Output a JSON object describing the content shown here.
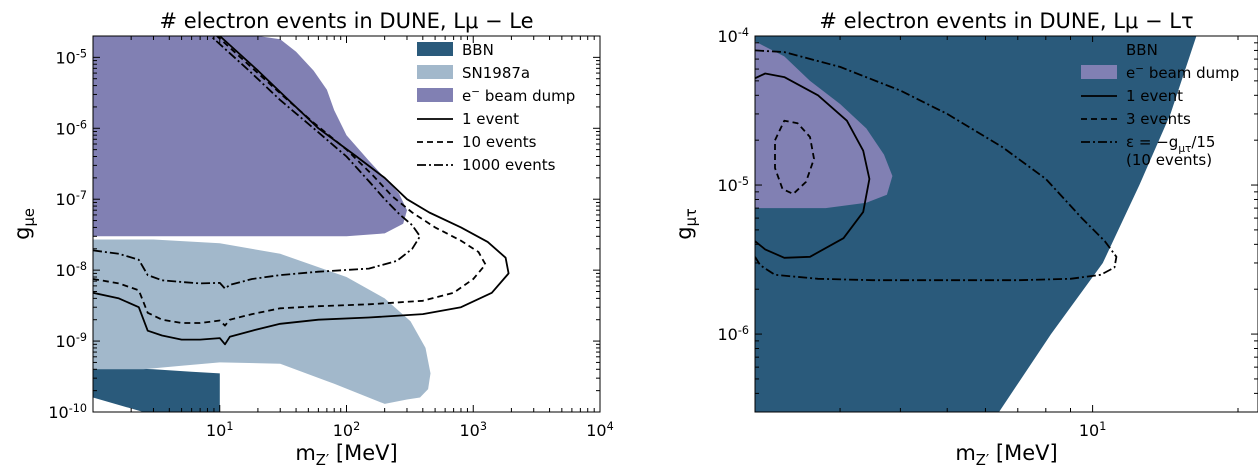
{
  "colors": {
    "bbn": "#2a5a7b",
    "sn1987a": "#a2b8cb",
    "beam_dump": "#8180b3",
    "line": "#000000"
  },
  "chart_data": [
    {
      "type": "area",
      "title": "# electron events in DUNE, Lμ − Le",
      "xlabel": "m_Z′ [MeV]",
      "ylabel": "g_μe",
      "xscale": "log",
      "yscale": "log",
      "xlim": [
        1,
        10000
      ],
      "ylim": [
        1e-10,
        2e-05
      ],
      "xticks": [
        {
          "value": 10,
          "label": "10^1"
        },
        {
          "value": 100,
          "label": "10^2"
        },
        {
          "value": 1000,
          "label": "10^3"
        },
        {
          "value": 10000,
          "label": "10^4"
        }
      ],
      "yticks": [
        {
          "value": 1e-10,
          "label": "10^-10"
        },
        {
          "value": 1e-09,
          "label": "10^-9"
        },
        {
          "value": 1e-08,
          "label": "10^-8"
        },
        {
          "value": 1e-07,
          "label": "10^-7"
        },
        {
          "value": 1e-06,
          "label": "10^-6"
        },
        {
          "value": 1e-05,
          "label": "10^-5"
        }
      ],
      "legend_position": "top-right",
      "legend": [
        {
          "label": "BBN",
          "kind": "patch",
          "color": "#2a5a7b"
        },
        {
          "label": "SN1987a",
          "kind": "patch",
          "color": "#a2b8cb"
        },
        {
          "label": "e^− beam dump",
          "kind": "patch",
          "color": "#8180b3"
        },
        {
          "label": "1 event",
          "kind": "line",
          "dash": "solid"
        },
        {
          "label": "10 events",
          "kind": "line",
          "dash": "dashed"
        },
        {
          "label": "1000 events",
          "kind": "line",
          "dash": "dashdot"
        }
      ],
      "regions": [
        {
          "name": "bbn",
          "color": "#2a5a7b",
          "points": [
            [
              1,
              1.6e-10
            ],
            [
              1,
              4.2e-10
            ],
            [
              1.5,
              4.2e-10
            ],
            [
              3,
              4e-10
            ],
            [
              6,
              3.7e-10
            ],
            [
              10,
              3.5e-10
            ],
            [
              10,
              1e-10
            ],
            [
              2.5,
              1e-10
            ]
          ]
        },
        {
          "name": "sn1987a",
          "color": "#a2b8cb",
          "points": [
            [
              1,
              2.7e-08
            ],
            [
              3,
              2.7e-08
            ],
            [
              10,
              2.4e-08
            ],
            [
              30,
              1.7e-08
            ],
            [
              100,
              8e-09
            ],
            [
              200,
              4e-09
            ],
            [
              320,
              1.9e-09
            ],
            [
              420,
              8e-10
            ],
            [
              460,
              3.5e-10
            ],
            [
              440,
              2.1e-10
            ],
            [
              380,
              1.6e-10
            ],
            [
              300,
              1.5e-10
            ],
            [
              200,
              1.3e-10
            ],
            [
              80,
              2.5e-10
            ],
            [
              30,
              4.8e-10
            ],
            [
              10,
              5e-10
            ],
            [
              5,
              4.5e-10
            ],
            [
              2.5,
              4e-10
            ],
            [
              1,
              4e-10
            ]
          ]
        },
        {
          "name": "beam_dump",
          "color": "#8180b3",
          "points": [
            [
              1,
              3e-08
            ],
            [
              20,
              3e-08
            ],
            [
              100,
              3e-08
            ],
            [
              200,
              3.3e-08
            ],
            [
              280,
              4.5e-08
            ],
            [
              300,
              7e-08
            ],
            [
              260,
              1.2e-07
            ],
            [
              200,
              2e-07
            ],
            [
              150,
              3.5e-07
            ],
            [
              100,
              8e-07
            ],
            [
              80,
              1.8e-06
            ],
            [
              70,
              3.5e-06
            ],
            [
              55,
              6.5e-06
            ],
            [
              40,
              1.2e-05
            ],
            [
              30,
              1.8e-05
            ],
            [
              20,
              2e-05
            ],
            [
              1,
              2e-05
            ]
          ]
        }
      ],
      "series": [
        {
          "name": "1 event",
          "dash": "solid",
          "points": [
            [
              1,
              4.8e-09
            ],
            [
              1.6,
              4e-09
            ],
            [
              2.3,
              3e-09
            ],
            [
              2.7,
              1.4e-09
            ],
            [
              3.5,
              1.2e-09
            ],
            [
              5,
              1.05e-09
            ],
            [
              7,
              1.05e-09
            ],
            [
              10,
              1.1e-09
            ],
            [
              11,
              9e-10
            ],
            [
              12,
              1.15e-09
            ],
            [
              18,
              1.4e-09
            ],
            [
              30,
              1.75e-09
            ],
            [
              60,
              2e-09
            ],
            [
              150,
              2.15e-09
            ],
            [
              400,
              2.4e-09
            ],
            [
              800,
              3e-09
            ],
            [
              1400,
              4.8e-09
            ],
            [
              1900,
              9e-09
            ],
            [
              1800,
              1.5e-08
            ],
            [
              1300,
              2.5e-08
            ],
            [
              800,
              4e-08
            ],
            [
              450,
              6.5e-08
            ],
            [
              300,
              1e-07
            ],
            [
              200,
              2e-07
            ],
            [
              120,
              4e-07
            ],
            [
              60,
              1e-06
            ],
            [
              35,
              2.5e-06
            ],
            [
              20,
              6.5e-06
            ],
            [
              10,
              2e-05
            ]
          ]
        },
        {
          "name": "10 events",
          "dash": "dashed",
          "points": [
            [
              1,
              7.5e-09
            ],
            [
              1.6,
              6.5e-09
            ],
            [
              2.3,
              5.2e-09
            ],
            [
              2.7,
              2.5e-09
            ],
            [
              3.5,
              2e-09
            ],
            [
              5,
              1.8e-09
            ],
            [
              7,
              1.8e-09
            ],
            [
              10,
              1.95e-09
            ],
            [
              11,
              1.65e-09
            ],
            [
              12,
              2e-09
            ],
            [
              18,
              2.4e-09
            ],
            [
              30,
              2.9e-09
            ],
            [
              60,
              3.1e-09
            ],
            [
              150,
              3.3e-09
            ],
            [
              400,
              3.7e-09
            ],
            [
              700,
              4.8e-09
            ],
            [
              1000,
              7.5e-09
            ],
            [
              1250,
              1.2e-08
            ],
            [
              1100,
              1.8e-08
            ],
            [
              800,
              2.6e-08
            ],
            [
              500,
              4e-08
            ],
            [
              330,
              6.5e-08
            ],
            [
              230,
              1.1e-07
            ],
            [
              160,
              2.2e-07
            ],
            [
              100,
              5e-07
            ],
            [
              55,
              1.2e-06
            ],
            [
              32,
              2.8e-06
            ],
            [
              19,
              6.5e-06
            ],
            [
              9.5,
              2e-05
            ]
          ]
        },
        {
          "name": "1000 events",
          "dash": "dashdot",
          "points": [
            [
              1,
              1.9e-08
            ],
            [
              1.6,
              1.7e-08
            ],
            [
              2.3,
              1.4e-08
            ],
            [
              2.7,
              8.5e-09
            ],
            [
              3.5,
              7.2e-09
            ],
            [
              5,
              6.8e-09
            ],
            [
              7,
              6.5e-09
            ],
            [
              10,
              6.6e-09
            ],
            [
              11,
              5.5e-09
            ],
            [
              12,
              6.2e-09
            ],
            [
              18,
              7.5e-09
            ],
            [
              30,
              8.5e-09
            ],
            [
              60,
              9.5e-09
            ],
            [
              150,
              1.05e-08
            ],
            [
              250,
              1.35e-08
            ],
            [
              330,
              2e-08
            ],
            [
              380,
              3e-08
            ],
            [
              330,
              4.3e-08
            ],
            [
              260,
              6.2e-08
            ],
            [
              200,
              1e-07
            ],
            [
              150,
              1.8e-07
            ],
            [
              100,
              4e-07
            ],
            [
              55,
              1e-06
            ],
            [
              30,
              2.5e-06
            ],
            [
              17,
              6.5e-06
            ],
            [
              8.5,
              2e-05
            ]
          ]
        }
      ]
    },
    {
      "type": "area",
      "title": "# electron events in DUNE, Lμ − Lτ",
      "xlabel": "m_Z′ [MeV]",
      "ylabel": "g_μτ",
      "xscale": "log",
      "yscale": "log",
      "xlim": [
        2,
        22
      ],
      "ylim": [
        3e-07,
        0.0001
      ],
      "xticks": [
        {
          "value": 10,
          "label": "10^1"
        }
      ],
      "yticks": [
        {
          "value": 1e-06,
          "label": "10^-6"
        },
        {
          "value": 1e-05,
          "label": "10^-5"
        },
        {
          "value": 0.0001,
          "label": "10^-4"
        }
      ],
      "legend_position": "top-right",
      "legend": [
        {
          "label": "BBN",
          "kind": "patch",
          "color": "#2a5a7b"
        },
        {
          "label": "e^− beam dump",
          "kind": "patch",
          "color": "#8180b3"
        },
        {
          "label": "1 event",
          "kind": "line",
          "dash": "solid"
        },
        {
          "label": "3 events",
          "kind": "line",
          "dash": "dashed"
        },
        {
          "label": "ε = −g_μτ/15",
          "label2": "(10 events)",
          "kind": "line",
          "dash": "dashdot"
        }
      ],
      "regions": [
        {
          "name": "bbn",
          "color": "#2a5a7b",
          "points": [
            [
              2,
              3e-07
            ],
            [
              2,
              0.0001
            ],
            [
              16.4,
              0.0001
            ],
            [
              14.5,
              3e-05
            ],
            [
              12.5,
              1e-05
            ],
            [
              10.5,
              3e-06
            ],
            [
              8.2,
              1e-06
            ],
            [
              6.4,
              3e-07
            ]
          ]
        },
        {
          "name": "beam_dump",
          "color": "#8180b3",
          "points": [
            [
              2,
              9.2e-05
            ],
            [
              2.3,
              7.3e-05
            ],
            [
              2.6,
              5e-05
            ],
            [
              3,
              3.5e-05
            ],
            [
              3.4,
              2.4e-05
            ],
            [
              3.7,
              1.6e-05
            ],
            [
              3.85,
              1.15e-05
            ],
            [
              3.75,
              8.6e-06
            ],
            [
              3.4,
              7.6e-06
            ],
            [
              2.8,
              7e-06
            ],
            [
              2,
              7e-06
            ]
          ]
        }
      ],
      "series": [
        {
          "name": "1 event",
          "dash": "solid",
          "points": [
            [
              2,
              5.2e-05
            ],
            [
              2.1,
              5.6e-05
            ],
            [
              2.3,
              5.3e-05
            ],
            [
              2.7,
              4e-05
            ],
            [
              3.1,
              2.7e-05
            ],
            [
              3.35,
              1.7e-05
            ],
            [
              3.45,
              1.1e-05
            ],
            [
              3.35,
              6.6e-06
            ],
            [
              3.05,
              4.4e-06
            ],
            [
              2.6,
              3.3e-06
            ],
            [
              2.3,
              3.25e-06
            ],
            [
              2.1,
              3.7e-06
            ],
            [
              2,
              4.2e-06
            ]
          ]
        },
        {
          "name": "3 events",
          "dash": "dashed",
          "points": [
            [
              2.2,
              2e-05
            ],
            [
              2.3,
              2.7e-05
            ],
            [
              2.45,
              2.6e-05
            ],
            [
              2.6,
              2.1e-05
            ],
            [
              2.65,
              1.5e-05
            ],
            [
              2.55,
              1.05e-05
            ],
            [
              2.4,
              8.7e-06
            ],
            [
              2.28,
              9.4e-06
            ],
            [
              2.2,
              1.3e-05
            ],
            [
              2.2,
              2e-05
            ]
          ]
        },
        {
          "name": "ε = −g_μτ/15",
          "dash": "dashdot",
          "points": [
            [
              2,
              8e-05
            ],
            [
              2.3,
              7.8e-05
            ],
            [
              3,
              6.2e-05
            ],
            [
              4,
              4.3e-05
            ],
            [
              5,
              3e-05
            ],
            [
              6.5,
              1.8e-05
            ],
            [
              8,
              1.1e-05
            ],
            [
              9.5,
              6e-06
            ],
            [
              10.6,
              4.2e-06
            ],
            [
              11.2,
              3.3e-06
            ],
            [
              11.1,
              2.8e-06
            ],
            [
              10.4,
              2.5e-06
            ],
            [
              9,
              2.35e-06
            ],
            [
              7,
              2.3e-06
            ],
            [
              5,
              2.3e-06
            ],
            [
              3.5,
              2.3e-06
            ],
            [
              2.7,
              2.35e-06
            ],
            [
              2.2,
              2.5e-06
            ],
            [
              2.05,
              2.9e-06
            ],
            [
              2,
              3.3e-06
            ]
          ]
        }
      ]
    }
  ]
}
